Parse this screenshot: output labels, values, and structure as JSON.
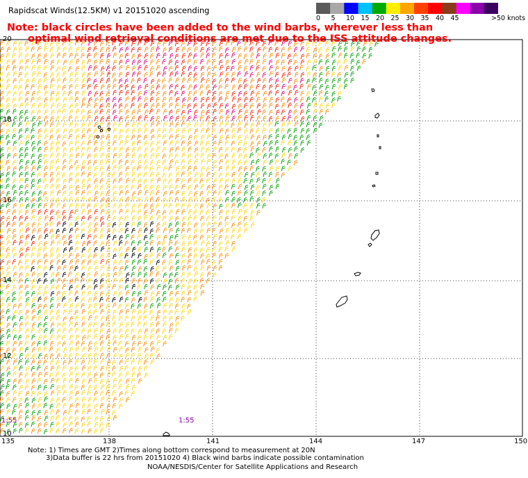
{
  "title": "Rapidscat Winds(12.5KM) v1 20151020 ascending",
  "note": {
    "line1": "Note: black circles have been added to the wind barbs, wherever less than",
    "line2": "optimal wind retrieval conditions are met due to the ISS attitude changes."
  },
  "colorbar": {
    "ticks": [
      "0",
      "5",
      "10",
      "15",
      "20",
      "25",
      "30",
      "35",
      "40",
      "45"
    ],
    "unit_label": ">50 knots",
    "colors": [
      "#5a5a5a",
      "#a8a8a8",
      "#0000ff",
      "#00c0ff",
      "#00aa00",
      "#ffee00",
      "#ffa500",
      "#ff4000",
      "#ff0000",
      "#8b3a1a",
      "#ff00ff",
      "#8a00aa",
      "#3a0060"
    ]
  },
  "map": {
    "lat_labels": [
      "20",
      "18",
      "16",
      "14",
      "12",
      "10"
    ],
    "lon_labels": [
      "135",
      "138",
      "141",
      "144",
      "147",
      "150"
    ],
    "swath_time_left": "1:55",
    "swath_time_mid": "1:55",
    "barb_colors": {
      "green": "#00a000",
      "yellow": "#ffd700",
      "orange": "#ff8c00",
      "red": "#ff2000",
      "magenta": "#e0007a",
      "black": "#000000"
    }
  },
  "footer": {
    "line1": "Note: 1) Times are GMT 2)Times along bottom correspond to measurement at 20N",
    "line2": "3)Data buffer is 22 hrs from 20151020 4) Black wind barbs indicate possible contamination",
    "line3": "NOAA/NESDIS/Center for Satellite Applications and Research"
  }
}
